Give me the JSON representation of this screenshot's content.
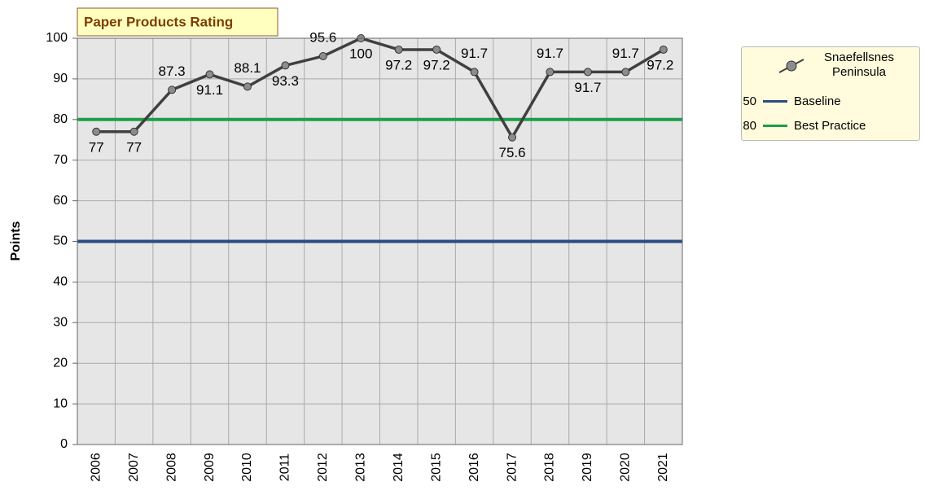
{
  "chart_data": {
    "type": "line",
    "title": "Paper Products Rating",
    "y_label": "Points",
    "categories": [
      "2006",
      "2007",
      "2008",
      "2009",
      "2010",
      "2011",
      "2012",
      "2013",
      "2014",
      "2015",
      "2016",
      "2017",
      "2018",
      "2019",
      "2020",
      "2021"
    ],
    "series": [
      {
        "name": "Snaefellsnes Peninsula",
        "color": "#404040",
        "marker_color": "#8c8c8c",
        "values": [
          77,
          77,
          87.3,
          91.1,
          88.1,
          93.3,
          95.6,
          100,
          97.2,
          97.2,
          91.7,
          75.6,
          91.7,
          91.7,
          91.7,
          97.2
        ]
      }
    ],
    "reference_lines": [
      {
        "name": "Baseline",
        "value": 50,
        "color": "#2a4d80"
      },
      {
        "name": "Best Practice",
        "value": 80,
        "color": "#1e9e4a"
      }
    ],
    "ylim": [
      0,
      100
    ],
    "yticks": [
      0,
      10,
      20,
      30,
      40,
      50,
      60,
      70,
      80,
      90,
      100
    ],
    "grid": true,
    "legend": "right"
  }
}
